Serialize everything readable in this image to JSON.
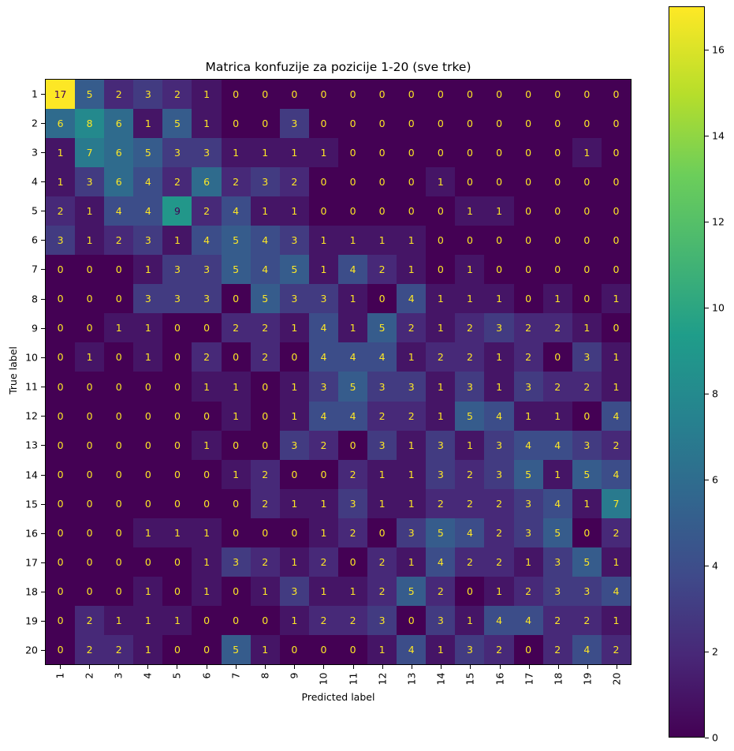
{
  "chart_data": {
    "type": "heatmap",
    "title": "Matrica konfuzije za pozicije 1-20 (sve trke)",
    "xlabel": "Predicted label",
    "ylabel": "True label",
    "x_tick_labels": [
      "1",
      "2",
      "3",
      "4",
      "5",
      "6",
      "7",
      "8",
      "9",
      "10",
      "11",
      "12",
      "13",
      "14",
      "15",
      "16",
      "17",
      "18",
      "19",
      "20"
    ],
    "y_tick_labels": [
      "1",
      "2",
      "3",
      "4",
      "5",
      "6",
      "7",
      "8",
      "9",
      "10",
      "11",
      "12",
      "13",
      "14",
      "15",
      "16",
      "17",
      "18",
      "19",
      "20"
    ],
    "colormap": "viridis",
    "colorbar": {
      "min": 0,
      "max": 17,
      "ticks": [
        0,
        2,
        4,
        6,
        8,
        10,
        12,
        14,
        16
      ]
    },
    "matrix": [
      [
        17,
        5,
        2,
        3,
        2,
        1,
        0,
        0,
        0,
        0,
        0,
        0,
        0,
        0,
        0,
        0,
        0,
        0,
        0,
        0
      ],
      [
        6,
        8,
        6,
        1,
        5,
        1,
        0,
        0,
        3,
        0,
        0,
        0,
        0,
        0,
        0,
        0,
        0,
        0,
        0,
        0
      ],
      [
        1,
        7,
        6,
        5,
        3,
        3,
        1,
        1,
        1,
        1,
        0,
        0,
        0,
        0,
        0,
        0,
        0,
        0,
        1,
        0
      ],
      [
        1,
        3,
        6,
        4,
        2,
        6,
        2,
        3,
        2,
        0,
        0,
        0,
        0,
        1,
        0,
        0,
        0,
        0,
        0,
        0
      ],
      [
        2,
        1,
        4,
        4,
        9,
        2,
        4,
        1,
        1,
        0,
        0,
        0,
        0,
        0,
        1,
        1,
        0,
        0,
        0,
        0
      ],
      [
        3,
        1,
        2,
        3,
        1,
        4,
        5,
        4,
        3,
        1,
        1,
        1,
        1,
        0,
        0,
        0,
        0,
        0,
        0,
        0
      ],
      [
        0,
        0,
        0,
        1,
        3,
        3,
        5,
        4,
        5,
        1,
        4,
        2,
        1,
        0,
        1,
        0,
        0,
        0,
        0,
        0
      ],
      [
        0,
        0,
        0,
        3,
        3,
        3,
        0,
        5,
        3,
        3,
        1,
        0,
        4,
        1,
        1,
        1,
        0,
        1,
        0,
        1
      ],
      [
        0,
        0,
        1,
        1,
        0,
        0,
        2,
        2,
        1,
        4,
        1,
        5,
        2,
        1,
        2,
        3,
        2,
        2,
        1,
        0
      ],
      [
        0,
        1,
        0,
        1,
        0,
        2,
        0,
        2,
        0,
        4,
        4,
        4,
        1,
        2,
        2,
        1,
        2,
        0,
        3,
        1
      ],
      [
        0,
        0,
        0,
        0,
        0,
        1,
        1,
        0,
        1,
        3,
        5,
        3,
        3,
        1,
        3,
        1,
        3,
        2,
        2,
        1
      ],
      [
        0,
        0,
        0,
        0,
        0,
        0,
        1,
        0,
        1,
        4,
        4,
        2,
        2,
        1,
        5,
        4,
        1,
        1,
        0,
        4
      ],
      [
        0,
        0,
        0,
        0,
        0,
        1,
        0,
        0,
        3,
        2,
        0,
        3,
        1,
        3,
        1,
        3,
        4,
        4,
        3,
        2
      ],
      [
        0,
        0,
        0,
        0,
        0,
        0,
        1,
        2,
        0,
        0,
        2,
        1,
        1,
        3,
        2,
        3,
        5,
        1,
        5,
        4
      ],
      [
        0,
        0,
        0,
        0,
        0,
        0,
        0,
        2,
        1,
        1,
        3,
        1,
        1,
        2,
        2,
        2,
        3,
        4,
        1,
        7
      ],
      [
        0,
        0,
        0,
        1,
        1,
        1,
        0,
        0,
        0,
        1,
        2,
        0,
        3,
        5,
        4,
        2,
        3,
        5,
        0,
        2
      ],
      [
        0,
        0,
        0,
        0,
        0,
        1,
        3,
        2,
        1,
        2,
        0,
        2,
        1,
        4,
        2,
        2,
        1,
        3,
        5,
        1
      ],
      [
        0,
        0,
        0,
        1,
        0,
        1,
        0,
        1,
        3,
        1,
        1,
        2,
        5,
        2,
        0,
        1,
        2,
        3,
        3,
        4
      ],
      [
        0,
        2,
        1,
        1,
        1,
        0,
        0,
        0,
        1,
        2,
        2,
        3,
        0,
        3,
        1,
        4,
        4,
        2,
        2,
        1
      ],
      [
        0,
        2,
        2,
        1,
        0,
        0,
        5,
        1,
        0,
        0,
        0,
        1,
        4,
        1,
        3,
        2,
        0,
        2,
        4,
        2
      ]
    ]
  }
}
